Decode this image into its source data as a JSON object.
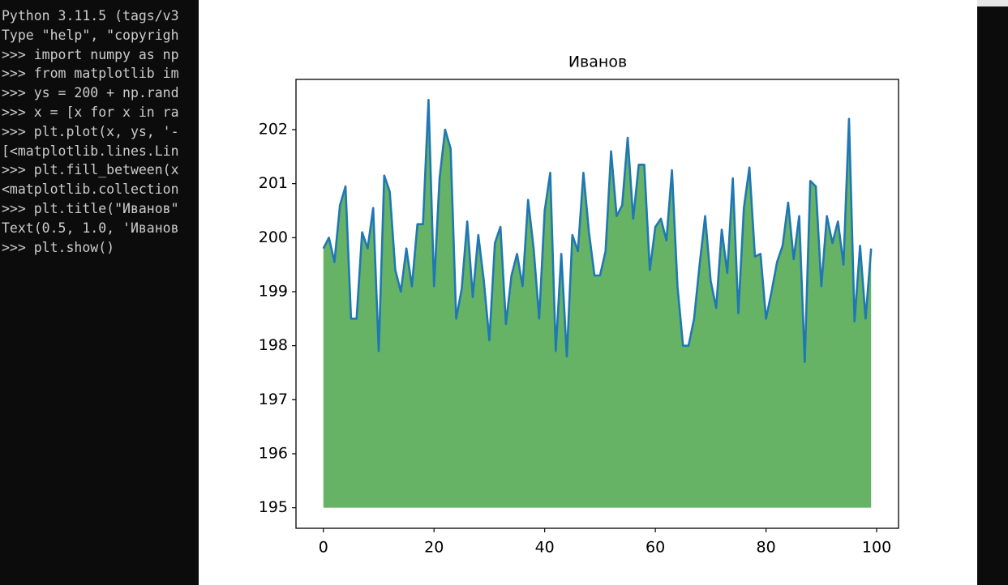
{
  "console": {
    "lines": [
      "Python 3.11.5 (tags/v3",
      "Type \"help\", \"copyrigh",
      ">>> import numpy as np",
      ">>> from matplotlib im",
      ">>> ys = 200 + np.rand",
      ">>> x = [x for x in ra",
      ">>> plt.plot(x, ys, '-",
      "[<matplotlib.lines.Lin",
      ">>> plt.fill_between(x",
      "<matplotlib.collection",
      ">>> plt.title(\"Иванов\"",
      "Text(0.5, 1.0, 'Иванов",
      ">>> plt.show()"
    ]
  },
  "chart_data": {
    "type": "line",
    "title": "Иванов",
    "x": [
      0,
      1,
      2,
      3,
      4,
      5,
      6,
      7,
      8,
      9,
      10,
      11,
      12,
      13,
      14,
      15,
      16,
      17,
      18,
      19,
      20,
      21,
      22,
      23,
      24,
      25,
      26,
      27,
      28,
      29,
      30,
      31,
      32,
      33,
      34,
      35,
      36,
      37,
      38,
      39,
      40,
      41,
      42,
      43,
      44,
      45,
      46,
      47,
      48,
      49,
      50,
      51,
      52,
      53,
      54,
      55,
      56,
      57,
      58,
      59,
      60,
      61,
      62,
      63,
      64,
      65,
      66,
      67,
      68,
      69,
      70,
      71,
      72,
      73,
      74,
      75,
      76,
      77,
      78,
      79,
      80,
      81,
      82,
      83,
      84,
      85,
      86,
      87,
      88,
      89,
      90,
      91,
      92,
      93,
      94,
      95,
      96,
      97,
      98,
      99
    ],
    "series": [
      {
        "color": "#1f77b4",
        "fill_color": "green",
        "fill_alpha": 0.6,
        "fill_base": 195,
        "values": [
          199.8,
          200.0,
          199.55,
          200.6,
          200.95,
          198.5,
          198.5,
          200.1,
          199.8,
          200.55,
          197.9,
          201.15,
          200.85,
          199.4,
          199.0,
          199.8,
          199.1,
          200.25,
          200.25,
          202.55,
          199.1,
          201.1,
          202.0,
          201.65,
          198.5,
          199.05,
          200.3,
          198.9,
          200.05,
          199.2,
          198.1,
          199.9,
          200.2,
          198.4,
          199.3,
          199.7,
          199.1,
          200.7,
          199.8,
          198.5,
          200.5,
          201.2,
          197.9,
          199.7,
          197.8,
          200.05,
          199.75,
          201.2,
          200.1,
          199.3,
          199.3,
          199.75,
          201.6,
          200.4,
          200.6,
          201.85,
          200.35,
          201.35,
          201.35,
          199.4,
          200.2,
          200.35,
          199.95,
          201.25,
          199.1,
          198.0,
          198.0,
          198.5,
          199.5,
          200.4,
          199.2,
          198.7,
          200.15,
          199.35,
          201.1,
          198.6,
          200.55,
          201.3,
          199.65,
          199.7,
          198.5,
          199.0,
          199.55,
          199.85,
          200.65,
          199.6,
          200.4,
          197.7,
          201.05,
          200.95,
          199.1,
          200.4,
          199.9,
          200.3,
          199.5,
          202.2,
          198.45,
          199.85,
          198.5,
          199.8
        ]
      }
    ],
    "xlim": [
      -4.95,
      103.95
    ],
    "ylim": [
      194.62,
      202.93
    ],
    "xticks": [
      0,
      20,
      40,
      60,
      80,
      100
    ],
    "yticks": [
      195,
      196,
      197,
      198,
      199,
      200,
      201,
      202
    ]
  }
}
